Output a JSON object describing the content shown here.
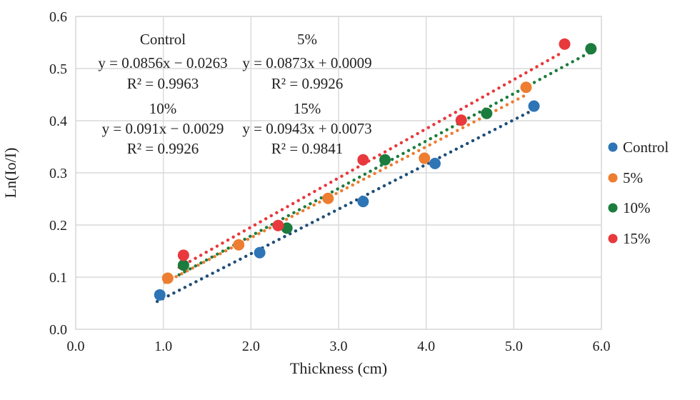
{
  "chart_data": {
    "type": "scatter",
    "title": "",
    "xlabel": "Thickness (cm)",
    "ylabel": "Ln(Io/I)",
    "xlim": [
      0.0,
      6.0
    ],
    "ylim": [
      0.0,
      0.6
    ],
    "xticks": [
      {
        "v": 0,
        "label": "0.0"
      },
      {
        "v": 1,
        "label": "1.0"
      },
      {
        "v": 2,
        "label": "2.0"
      },
      {
        "v": 3,
        "label": "3.0"
      },
      {
        "v": 4,
        "label": "4.0"
      },
      {
        "v": 5,
        "label": "5.0"
      },
      {
        "v": 6,
        "label": "6.0"
      }
    ],
    "yticks": [
      {
        "v": 0.0,
        "label": "0.0"
      },
      {
        "v": 0.1,
        "label": "0.1"
      },
      {
        "v": 0.2,
        "label": "0.2"
      },
      {
        "v": 0.3,
        "label": "0.3"
      },
      {
        "v": 0.4,
        "label": "0.4"
      },
      {
        "v": 0.5,
        "label": "0.5"
      },
      {
        "v": 0.6,
        "label": "0.6"
      }
    ],
    "grid": true,
    "grid_color": "#d9d9d9",
    "legend_position": "right",
    "series": [
      {
        "name": "Control",
        "color": "#2e75b6",
        "trend_color": "#1f4e79",
        "points": [
          [
            0.96,
            0.066
          ],
          [
            2.1,
            0.147
          ],
          [
            3.28,
            0.245
          ],
          [
            4.1,
            0.318
          ],
          [
            5.23,
            0.428
          ]
        ],
        "trend": {
          "slope": 0.0856,
          "intercept": -0.0263,
          "x_start": 0.93,
          "x_end": 5.23
        },
        "annotation": {
          "label": "Control",
          "equation": "y = 0.0856x − 0.0263",
          "r2": "R² = 0.9963",
          "col": 0,
          "row": 0
        }
      },
      {
        "name": "5%",
        "color": "#ed7d31",
        "trend_color": "#ed7d31",
        "points": [
          [
            1.05,
            0.098
          ],
          [
            1.86,
            0.162
          ],
          [
            2.88,
            0.251
          ],
          [
            3.98,
            0.328
          ],
          [
            5.14,
            0.464
          ]
        ],
        "trend": {
          "slope": 0.0873,
          "intercept": 0.0009,
          "x_start": 1.02,
          "x_end": 5.14
        },
        "annotation": {
          "label": "5%",
          "equation": "y = 0.0873x + 0.0009",
          "r2": "R² = 0.9926",
          "col": 1,
          "row": 0
        }
      },
      {
        "name": "10%",
        "color": "#1b7c3d",
        "trend_color": "#1b7c3d",
        "points": [
          [
            1.23,
            0.123
          ],
          [
            2.41,
            0.194
          ],
          [
            3.53,
            0.325
          ],
          [
            4.69,
            0.414
          ],
          [
            5.88,
            0.538
          ]
        ],
        "trend": {
          "slope": 0.091,
          "intercept": -0.0029,
          "x_start": 1.18,
          "x_end": 5.88
        },
        "annotation": {
          "label": "10%",
          "equation": "y = 0.091x − 0.0029",
          "r2": "R² = 0.9926",
          "col": 0,
          "row": 1
        }
      },
      {
        "name": "15%",
        "color": "#e8393c",
        "trend_color": "#e8393c",
        "points": [
          [
            1.23,
            0.142
          ],
          [
            2.31,
            0.199
          ],
          [
            3.28,
            0.325
          ],
          [
            4.4,
            0.401
          ],
          [
            5.58,
            0.547
          ]
        ],
        "trend": {
          "slope": 0.0943,
          "intercept": 0.0073,
          "x_start": 1.18,
          "x_end": 5.52
        },
        "annotation": {
          "label": "15%",
          "equation": "y = 0.0943x + 0.0073",
          "r2": "R² = 0.9841",
          "col": 1,
          "row": 1
        }
      }
    ]
  }
}
